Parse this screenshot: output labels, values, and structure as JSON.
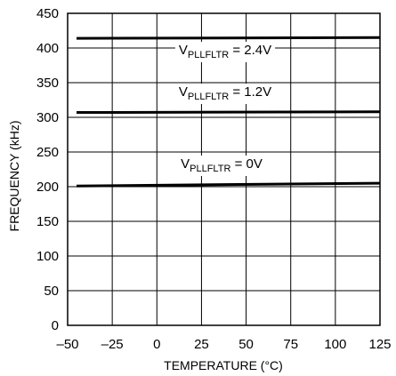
{
  "chart_data": {
    "type": "line",
    "title": "",
    "xlabel": "TEMPERATURE (°C)",
    "ylabel": "FREQUENCY (kHz)",
    "xlim": [
      -50,
      125
    ],
    "ylim": [
      0,
      450
    ],
    "x_ticks": [
      -50,
      -25,
      0,
      25,
      50,
      75,
      100,
      125
    ],
    "x_tick_labels": [
      "–50",
      "–25",
      "0",
      "25",
      "50",
      "75",
      "100",
      "125"
    ],
    "y_ticks": [
      0,
      50,
      100,
      150,
      200,
      250,
      300,
      350,
      400,
      450
    ],
    "y_tick_labels": [
      "0",
      "50",
      "100",
      "150",
      "200",
      "250",
      "300",
      "350",
      "400",
      "450"
    ],
    "grid": true,
    "legend": "none",
    "line_color": "#000000",
    "series": [
      {
        "label_main": "V",
        "label_sub": "PLLFLTR",
        "label_value": " = 2.4V",
        "x": [
          -45,
          125
        ],
        "y": [
          414,
          415
        ]
      },
      {
        "label_main": "V",
        "label_sub": "PLLFLTR",
        "label_value": " = 1.2V",
        "x": [
          -45,
          125
        ],
        "y": [
          307,
          308
        ]
      },
      {
        "label_main": "V",
        "label_sub": "PLLFLTR",
        "label_value": " = 0V",
        "x": [
          -45,
          125
        ],
        "y": [
          201,
          205
        ]
      }
    ]
  }
}
